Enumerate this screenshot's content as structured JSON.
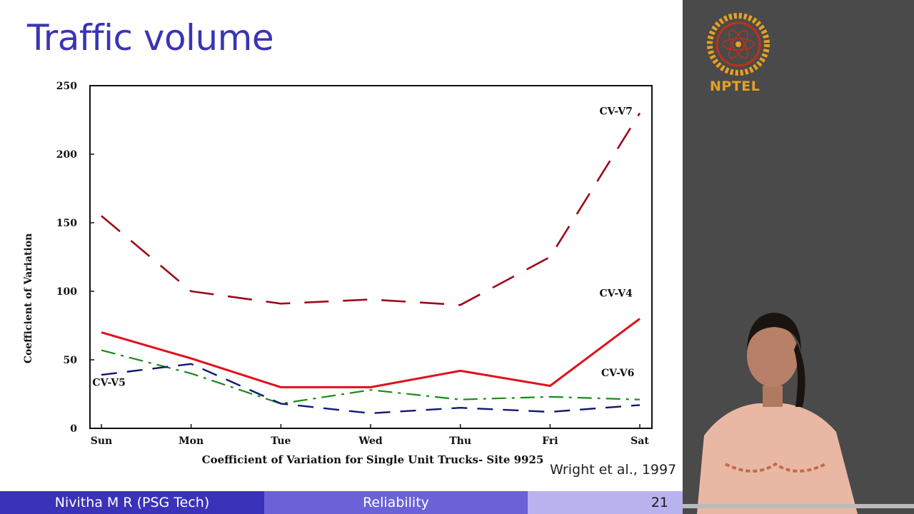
{
  "slide": {
    "title": "Traffic volume",
    "citation": "Wright et al., 1997"
  },
  "footer": {
    "author": "Nivitha M R (PSG Tech)",
    "topic": "Reliability",
    "page": "21"
  },
  "branding": {
    "logo_text": "NPTEL",
    "logo_color": "#e8a020"
  },
  "chart_data": {
    "type": "line",
    "title": "Coefficient of Variation for Single Unit Trucks- Site 9925",
    "xlabel": "",
    "ylabel": "Coefficient of Variation",
    "categories": [
      "Sun",
      "Mon",
      "Tue",
      "Wed",
      "Thu",
      "Fri",
      "Sat"
    ],
    "ylim": [
      0,
      250
    ],
    "yticks": [
      0,
      50,
      100,
      150,
      200,
      250
    ],
    "grid": false,
    "series": [
      {
        "name": "CV-V7",
        "color": "#9b0a1a",
        "dash": "long-dash",
        "values": [
          155,
          100,
          91,
          94,
          90,
          125,
          230
        ]
      },
      {
        "name": "CV-V4",
        "color": "#e0101c",
        "dash": "solid",
        "values": [
          70,
          51,
          30,
          30,
          42,
          31,
          80
        ]
      },
      {
        "name": "CV-V6",
        "color": "#1a8a1a",
        "dash": "dash-dot",
        "values": [
          57,
          40,
          18,
          28,
          21,
          23,
          21
        ]
      },
      {
        "name": "CV-V5",
        "color": "#101870",
        "dash": "dash",
        "values": [
          39,
          47,
          18,
          11,
          15,
          12,
          17
        ]
      }
    ]
  }
}
